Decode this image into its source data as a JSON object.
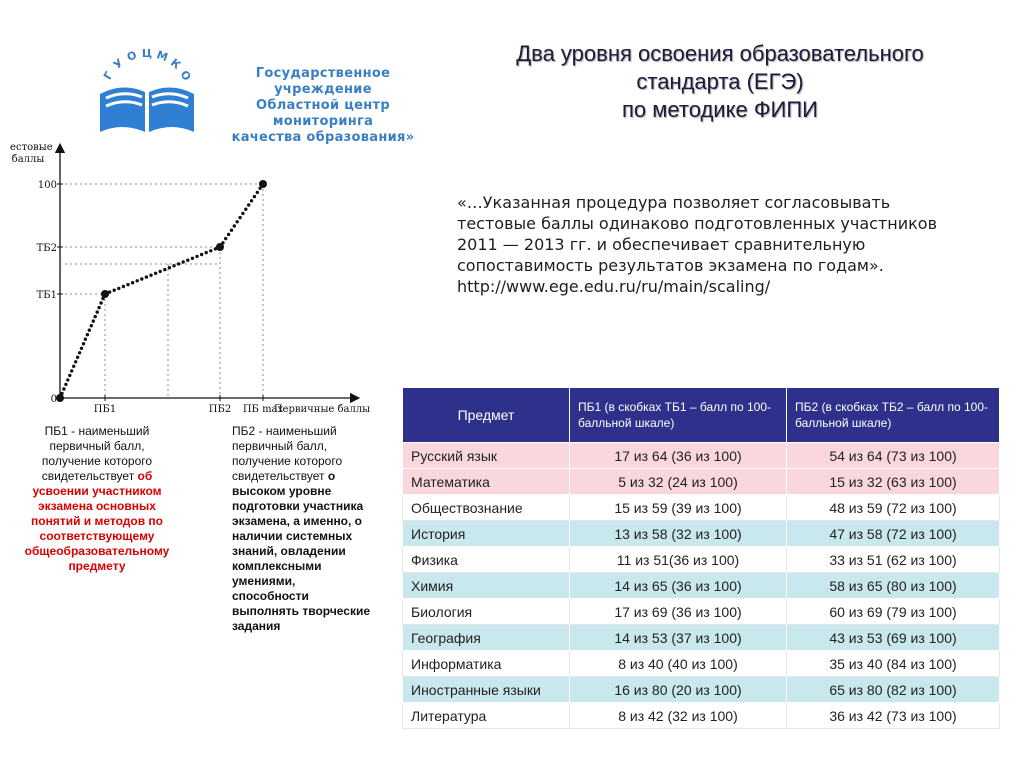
{
  "logo": {
    "arc_letters": "ГУОЦМКО",
    "org_lines": [
      "Государственное учреждение",
      "Областной центр мониторинга",
      "качества образования»"
    ]
  },
  "title": {
    "lines": [
      "Два уровня освоения образовательного",
      "стандарта (ЕГЭ)",
      "по методике ФИПИ"
    ]
  },
  "quote": {
    "lines": [
      "«…Указанная процедура позволяет согласовывать",
      "тестовые баллы одинаково подготовленных участников",
      "2011 — 2013 гг. и обеспечивает сравнительную",
      "сопоставимость результатов экзамена по годам».",
      "http://www.ege.edu.ru/ru/main/scaling/"
    ]
  },
  "chart_data": {
    "type": "line",
    "ylabel": "Тестовые баллы",
    "xlabel": "Первичные баллы",
    "y_ticks": [
      "100",
      "ТБ2",
      "ТБ1",
      "0"
    ],
    "x_ticks": [
      "ПБ1",
      "ПБ2",
      "ПБ max"
    ],
    "series": [
      {
        "x": [
          "0",
          "ПБ1",
          "ПБ2",
          "ПБ max"
        ],
        "y": [
          "0",
          "ТБ1",
          "ТБ2",
          "100"
        ]
      }
    ]
  },
  "captions": {
    "pb1_intro": "ПБ1 - наименьший первичный балл, получение которого свидетельствует",
    "pb1_bold": "об усвоении участником экзамена основных понятий и методов по соответствующему общеобразовательному предмету",
    "pb2_intro": "ПБ2 - наименьший первичный балл, получение которого свидетельствует",
    "pb2_red": "о высоком уровне подготовки участника экзамена, а именно, о наличии системных знаний, овладении комплексными умениями, способности выполнять творческие задания"
  },
  "table": {
    "headers": [
      "Предмет",
      "ПБ1 (в скобках ТБ1 – балл по 100-балльной шкале)",
      "ПБ2 (в скобках ТБ2 – балл по 100-балльной шкале)"
    ],
    "rows": [
      {
        "subject": "Русский язык",
        "pb1": "17 из 64 (36 из 100)",
        "pb2": "54 из 64 (73 из 100)",
        "color": "pink"
      },
      {
        "subject": "Математика",
        "pb1": "5 из 32 (24 из 100)",
        "pb2": "15 из 32 (63 из 100)",
        "color": "pink"
      },
      {
        "subject": "Обществознание",
        "pb1": "15 из 59 (39 из 100)",
        "pb2": "48 из 59 (72 из 100)",
        "color": "white"
      },
      {
        "subject": "История",
        "pb1": "13 из 58 (32 из 100)",
        "pb2": "47 из 58 (72 из 100)",
        "color": "cyan"
      },
      {
        "subject": "Физика",
        "pb1": "11 из 51(36 из 100)",
        "pb2": "33 из 51 (62 из 100)",
        "color": "white"
      },
      {
        "subject": "Химия",
        "pb1": "14 из 65 (36 из 100)",
        "pb2": "58 из 65 (80 из 100)",
        "color": "cyan"
      },
      {
        "subject": "Биология",
        "pb1": "17 из 69 (36 из 100)",
        "pb2": "60 из 69 (79 из 100)",
        "color": "white"
      },
      {
        "subject": "География",
        "pb1": "14 из 53 (37 из 100)",
        "pb2": "43 из 53 (69 из 100)",
        "color": "cyan"
      },
      {
        "subject": "Информатика",
        "pb1": "8 из 40 (40 из 100)",
        "pb2": "35 из 40 (84 из 100)",
        "color": "white"
      },
      {
        "subject": "Иностранные языки",
        "pb1": "16 из 80 (20 из 100)",
        "pb2": "65 из 80 (82 из 100)",
        "color": "cyan"
      },
      {
        "subject": "Литература",
        "pb1": "8 из 42 (32 из 100)",
        "pb2": "36 из 42 (73 из 100)",
        "color": "white"
      }
    ]
  }
}
